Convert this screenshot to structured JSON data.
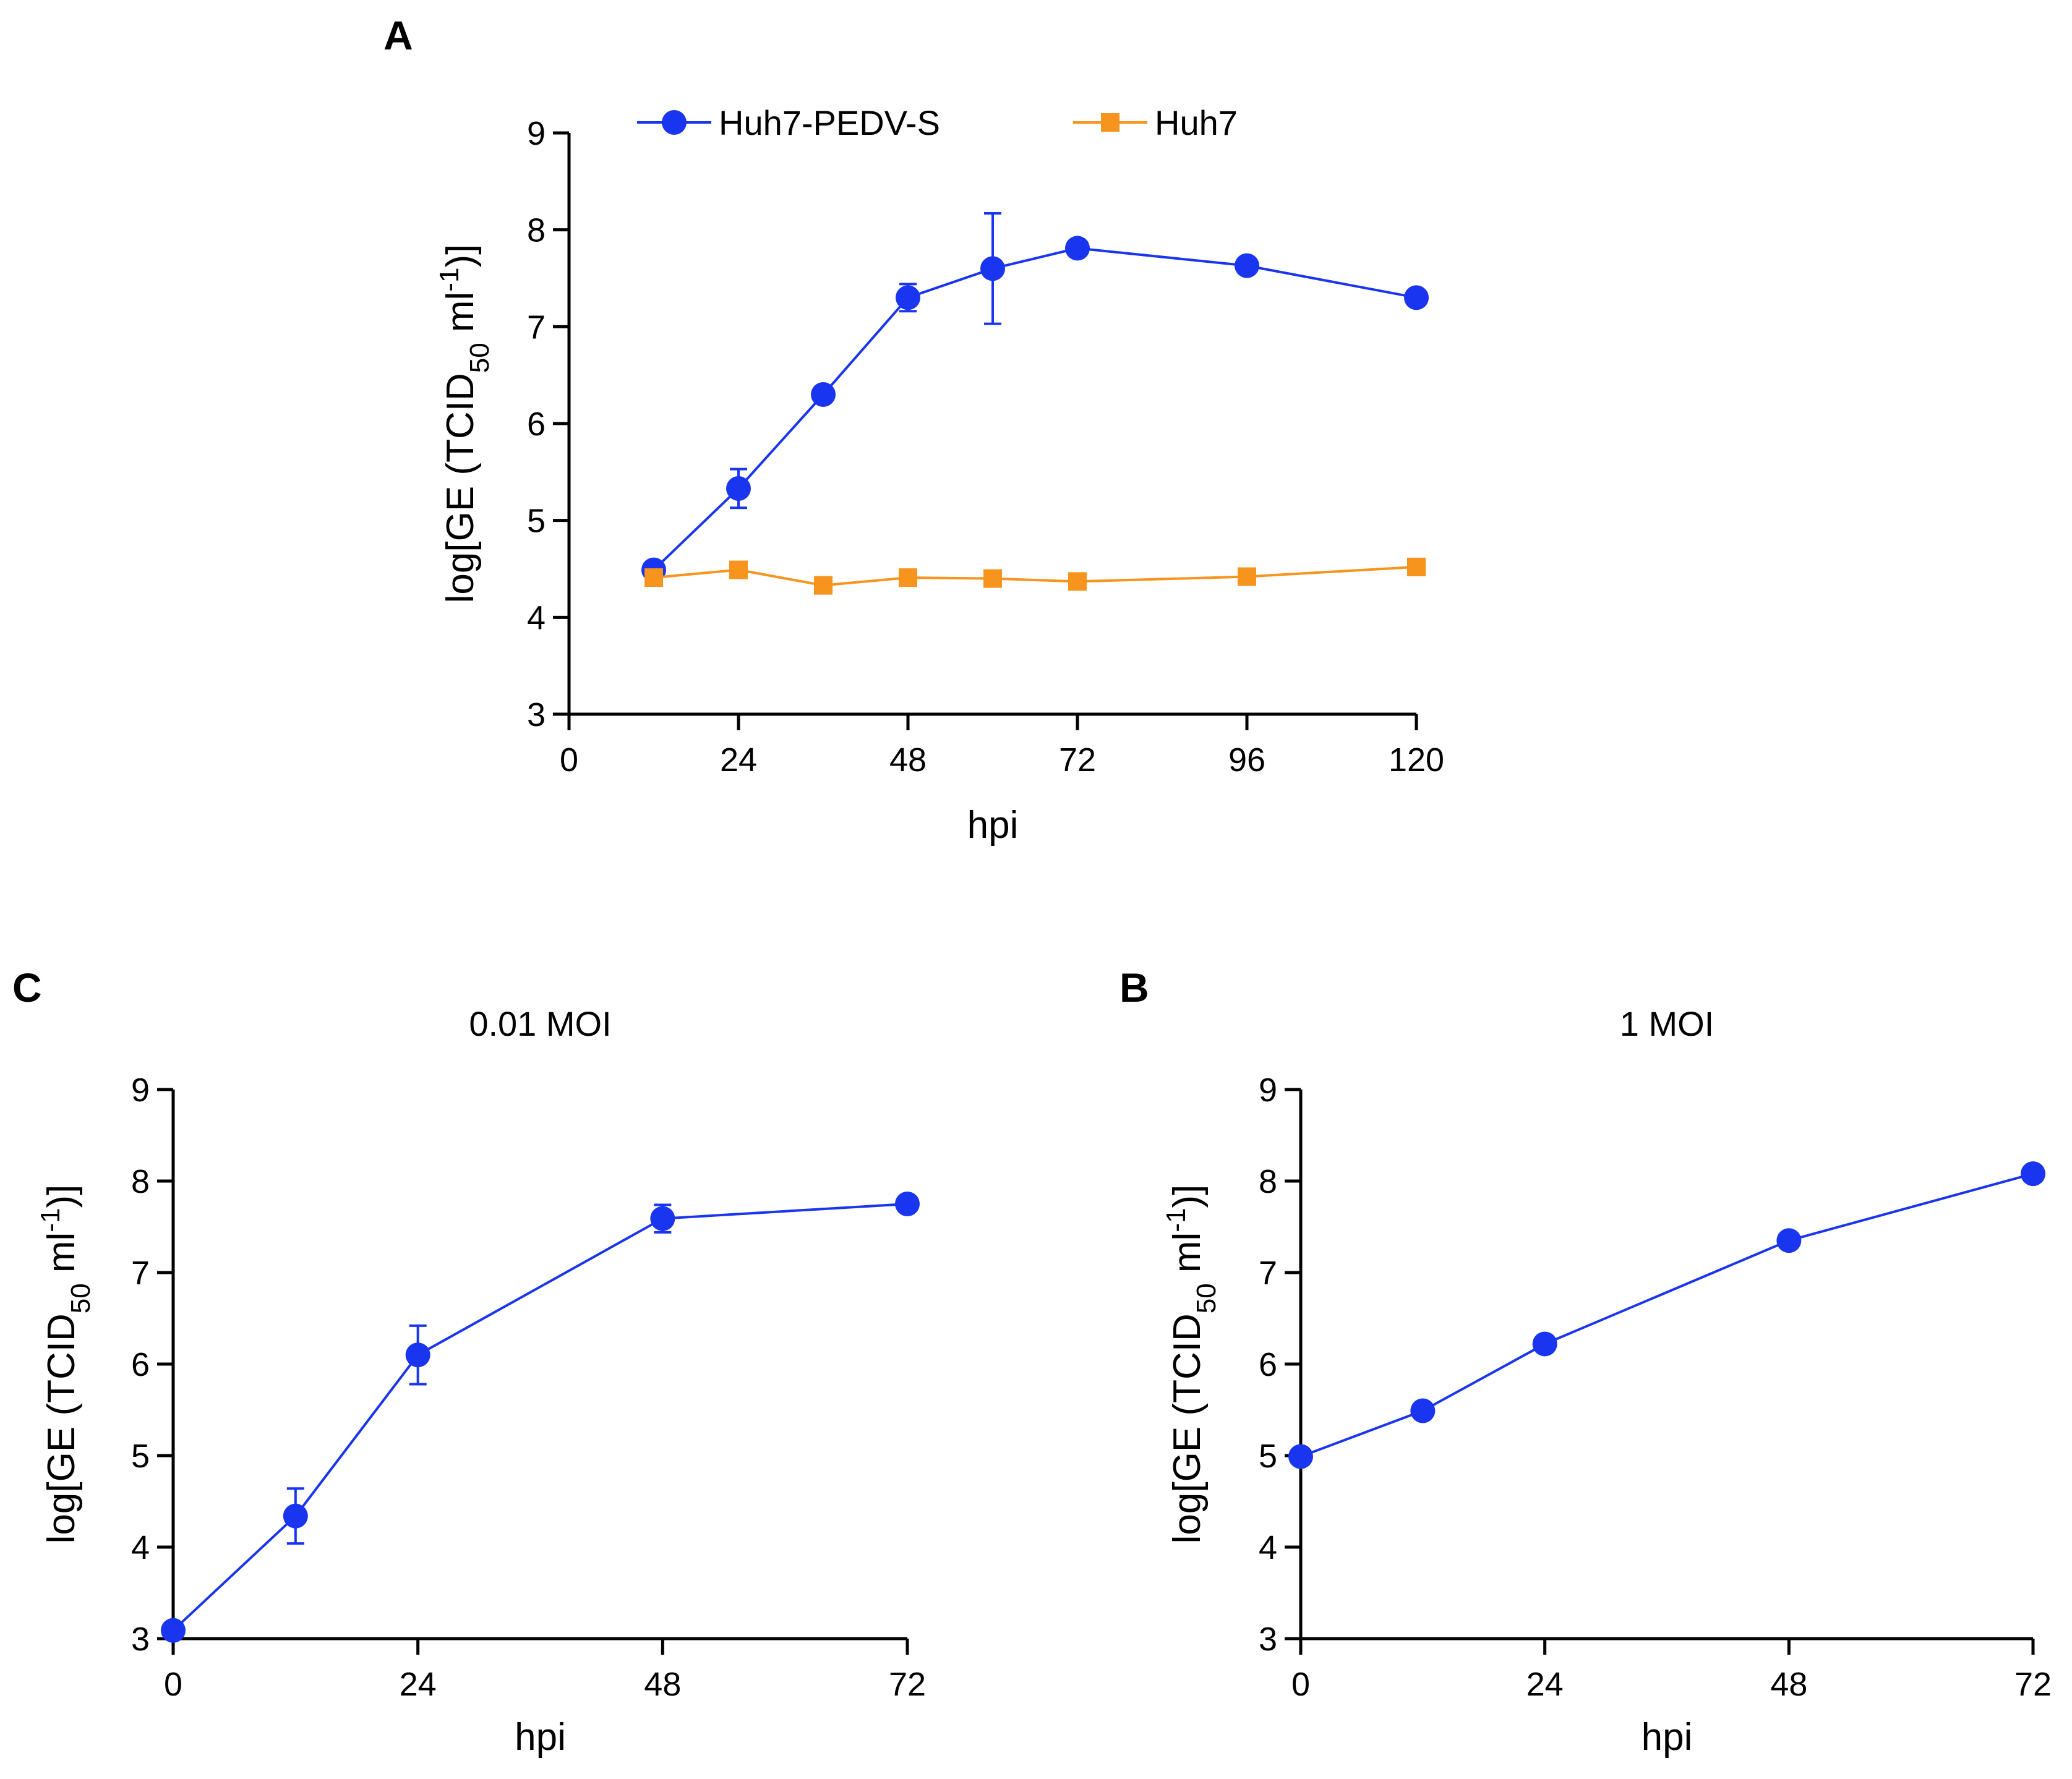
{
  "chart_data": [
    {
      "id": "A",
      "panel_label": "A",
      "type": "line",
      "title": "",
      "xlabel": "hpi",
      "ylabel": "log[GE (TCID",
      "ylabel_sub": "50",
      "ylabel_mid": " ml",
      "ylabel_sup": "-1",
      "ylabel_end": ")]",
      "xlim": [
        0,
        120
      ],
      "ylim": [
        3,
        9
      ],
      "xticks": [
        0,
        24,
        48,
        72,
        96,
        120
      ],
      "xtick_labels": [
        "0",
        "24",
        "48",
        "72",
        "96",
        "120"
      ],
      "yticks": [
        3,
        4,
        5,
        6,
        7,
        8,
        9
      ],
      "ytick_labels": [
        "3",
        "4",
        "5",
        "6",
        "7",
        "8",
        "9"
      ],
      "legend_position": "top",
      "series": [
        {
          "name": "Huh7-PEDV-S",
          "marker": "circle",
          "color": "#1a35f0",
          "x": [
            12,
            24,
            36,
            48,
            60,
            72,
            96,
            120
          ],
          "values": [
            4.49,
            5.33,
            6.3,
            7.3,
            7.6,
            7.81,
            7.63,
            7.3
          ],
          "error": [
            0,
            0.2,
            0,
            0.14,
            0.57,
            0,
            0,
            0
          ]
        },
        {
          "name": "Huh7",
          "marker": "square",
          "color": "#f7941d",
          "x": [
            12,
            24,
            36,
            48,
            60,
            72,
            96,
            120
          ],
          "values": [
            4.41,
            4.49,
            4.33,
            4.41,
            4.4,
            4.37,
            4.42,
            4.52
          ],
          "error": [
            0,
            0,
            0,
            0,
            0,
            0,
            0,
            0
          ]
        }
      ]
    },
    {
      "id": "C",
      "panel_label": "C",
      "type": "line",
      "title": "0.01 MOI",
      "xlabel": "hpi",
      "ylabel": "log[GE (TCID",
      "ylabel_sub": "50",
      "ylabel_mid": " ml",
      "ylabel_sup": "-1",
      "ylabel_end": ")]",
      "xlim": [
        0,
        72
      ],
      "ylim": [
        3,
        9
      ],
      "xticks": [
        0,
        24,
        48,
        72
      ],
      "xtick_labels": [
        "0",
        "24",
        "48",
        "72"
      ],
      "yticks": [
        3,
        4,
        5,
        6,
        7,
        8,
        9
      ],
      "ytick_labels": [
        "3",
        "4",
        "5",
        "6",
        "7",
        "8",
        "9"
      ],
      "series": [
        {
          "name": "0.01 MOI",
          "marker": "circle",
          "color": "#1a35f0",
          "x": [
            0,
            12,
            24,
            48,
            72
          ],
          "values": [
            3.09,
            4.34,
            6.1,
            7.59,
            7.75
          ],
          "error": [
            0,
            0.3,
            0.32,
            0.15,
            0
          ]
        }
      ]
    },
    {
      "id": "B",
      "panel_label": "B",
      "type": "line",
      "title": "1 MOI",
      "xlabel": "hpi",
      "ylabel": "log[GE (TCID",
      "ylabel_sub": "50",
      "ylabel_mid": " ml",
      "ylabel_sup": "-1",
      "ylabel_end": ")]",
      "xlim": [
        0,
        72
      ],
      "ylim": [
        3,
        9
      ],
      "xticks": [
        0,
        24,
        48,
        72
      ],
      "xtick_labels": [
        "0",
        "24",
        "48",
        "72"
      ],
      "yticks": [
        3,
        4,
        5,
        6,
        7,
        8,
        9
      ],
      "ytick_labels": [
        "3",
        "4",
        "5",
        "6",
        "7",
        "8",
        "9"
      ],
      "series": [
        {
          "name": "1 MOI",
          "marker": "circle",
          "color": "#1a35f0",
          "x": [
            0,
            12,
            24,
            48,
            72
          ],
          "values": [
            4.99,
            5.49,
            6.22,
            7.35,
            8.08
          ],
          "error": [
            0,
            0,
            0,
            0,
            0
          ]
        }
      ]
    }
  ]
}
